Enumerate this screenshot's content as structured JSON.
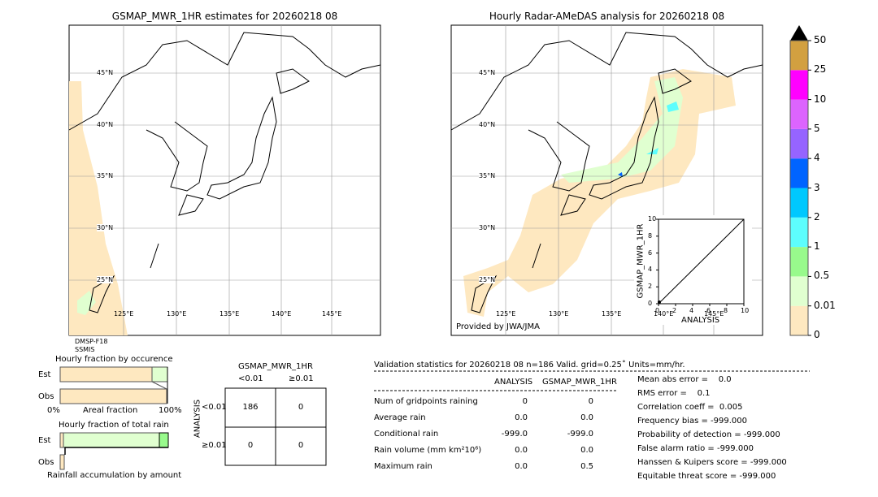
{
  "left_map": {
    "title": "GSMAP_MWR_1HR estimates for 20260218 08",
    "sensor": [
      "DMSP-F18",
      "SSMIS"
    ]
  },
  "right_map": {
    "title": "Hourly Radar-AMeDAS analysis for 20260218 08",
    "credit": "Provided by JWA/JMA"
  },
  "lat_labels": [
    "45°N",
    "40°N",
    "35°N",
    "30°N",
    "25°N"
  ],
  "lon_labels": [
    "125°E",
    "130°E",
    "135°E",
    "140°E",
    "145°E"
  ],
  "colorbar": {
    "ticks": [
      "0",
      "0.01",
      "0.5",
      "1",
      "2",
      "3",
      "4",
      "5",
      "10",
      "25",
      "50"
    ],
    "colors": [
      "#fee8c0",
      "#e0ffd0",
      "#98fa8c",
      "#5dfdfd",
      "#00c8fe",
      "#0064ff",
      "#9664ff",
      "#dc64fe",
      "#ff00ff",
      "#d2a040"
    ],
    "extend_color": "#000000"
  },
  "inset": {
    "ylabel": "GSMAP_MWR_1HR",
    "xlabel": "ANALYSIS",
    "ticks": [
      "0",
      "2",
      "4",
      "6",
      "8",
      "10"
    ]
  },
  "occurrence": {
    "title": "Hourly fraction by occurence",
    "rows": [
      "Est",
      "Obs"
    ],
    "xlabel": "Areal fraction",
    "x0": "0%",
    "x1": "100%",
    "est_dry": 0.85,
    "est_light": 0.14,
    "obs_dry": 0.99
  },
  "total_rain": {
    "title": "Hourly fraction of total rain",
    "rows": [
      "Est",
      "Obs"
    ],
    "footer": "Rainfall accumulation by amount"
  },
  "contingency": {
    "title": "GSMAP_MWR_1HR",
    "cols": [
      "<0.01",
      "≥0.01"
    ],
    "ylabel": "ANALYSIS",
    "rows": [
      "<0.01",
      "≥0.01"
    ],
    "cells": [
      [
        "186",
        "0"
      ],
      [
        "0",
        "0"
      ]
    ]
  },
  "validation": {
    "header": "Validation statistics for 20260218 08  n=186 Valid. grid=0.25˚ Units=mm/hr.",
    "cols": [
      "ANALYSIS",
      "GSMAP_MWR_1HR"
    ],
    "rows": [
      {
        "label": "Num of gridpoints raining",
        "a": "0",
        "g": "0"
      },
      {
        "label": "Average rain",
        "a": "0.0",
        "g": "0.0"
      },
      {
        "label": "Conditional rain",
        "a": "-999.0",
        "g": "-999.0"
      },
      {
        "label": "Rain volume (mm km²10⁶)",
        "a": "0.0",
        "g": "0.0"
      },
      {
        "label": "Maximum rain",
        "a": "0.0",
        "g": "0.5"
      }
    ],
    "scores": [
      "Mean abs error =    0.0",
      "RMS error =    0.1",
      "Correlation coeff =  0.005",
      "Frequency bias = -999.000",
      "Probability of detection = -999.000",
      "False alarm ratio = -999.000",
      "Hanssen & Kuipers score = -999.000",
      "Equitable threat score = -999.000"
    ]
  }
}
